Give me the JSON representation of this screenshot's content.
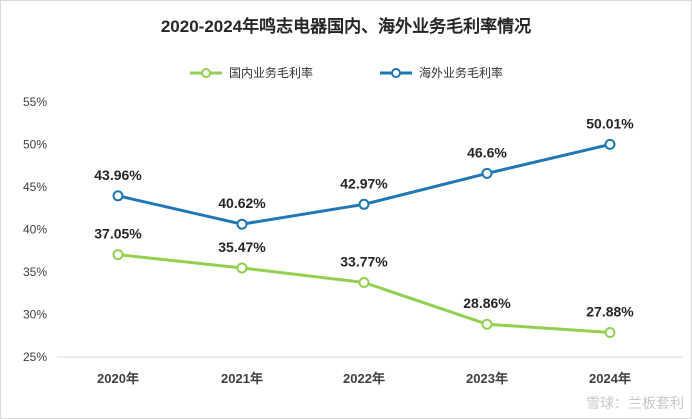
{
  "chart_data": {
    "type": "line",
    "title": "2020-2024年鸣志电器国内、海外业务毛利率情况",
    "categories": [
      "2020年",
      "2021年",
      "2022年",
      "2023年",
      "2024年"
    ],
    "series": [
      {
        "name": "国内业务毛利率",
        "color": "#92d050",
        "values": [
          37.05,
          35.47,
          33.77,
          28.86,
          27.88
        ],
        "labels": [
          "37.05%",
          "35.47%",
          "33.77%",
          "28.86%",
          "27.88%"
        ]
      },
      {
        "name": "海外业务毛利率",
        "color": "#1f77b4",
        "values": [
          43.96,
          40.62,
          42.97,
          46.6,
          50.01
        ],
        "labels": [
          "43.96%",
          "40.62%",
          "42.97%",
          "46.6%",
          "50.01%"
        ]
      }
    ],
    "yticks": [
      "25%",
      "30%",
      "35%",
      "40%",
      "45%",
      "50%",
      "55%"
    ],
    "ylim": [
      25,
      55
    ],
    "legend_position": "top-center",
    "grid": false
  },
  "watermark": "雪球：兰板套利"
}
